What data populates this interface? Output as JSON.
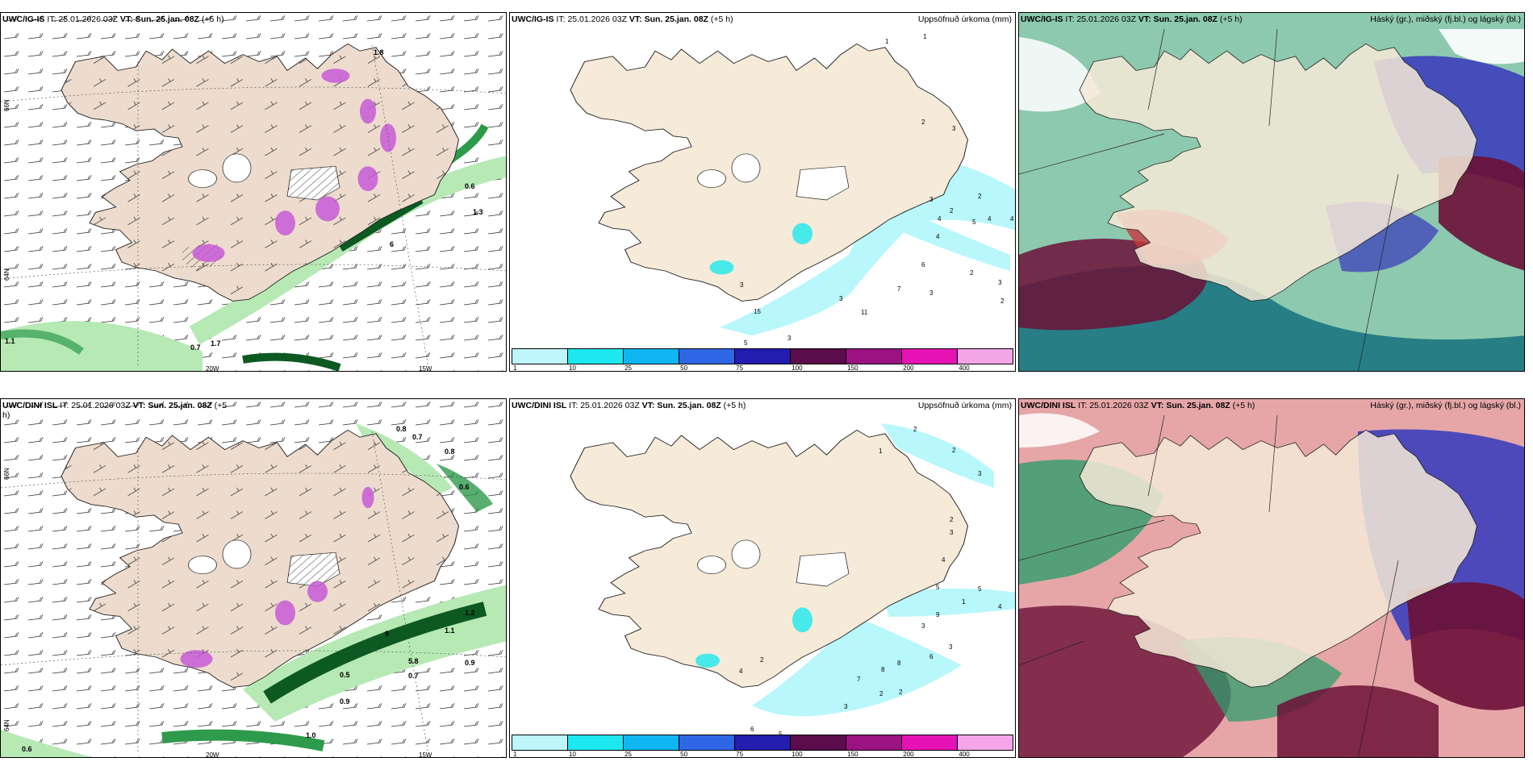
{
  "panels": [
    {
      "model": "UWC/IG-IS",
      "it_label": "IT:",
      "it_value": "25.01.2026 03Z",
      "vt_label": "VT:",
      "vt_value": "Sun. 25.jan. 08Z",
      "lead": "(+5 h)",
      "right_title": "",
      "labels": [
        "1.8",
        "0.6",
        "0.7",
        "1.1",
        "1.3",
        "6",
        "1.7"
      ],
      "lon_ticks": [
        "20W",
        "15W"
      ],
      "lat_ticks": [
        "66N",
        "64N"
      ]
    },
    {
      "model": "UWC/IG-IS",
      "it_label": "IT:",
      "it_value": "25.01.2026 03Z",
      "vt_label": "VT:",
      "vt_value": "Sun. 25.jan. 08Z",
      "lead": "(+5 h)",
      "right_title": "Uppsöfnuð úrkoma (mm)",
      "labels": [
        "1",
        "2",
        "2",
        "3",
        "4",
        "3",
        "2",
        "4",
        "5",
        "4",
        "4",
        "6",
        "7",
        "3",
        "2",
        "3",
        "2",
        "3",
        "11",
        "5",
        "3",
        "3",
        "15",
        "1"
      ]
    },
    {
      "model": "UWC/IG-IS",
      "it_label": "IT:",
      "it_value": "25.01.2026 03Z",
      "vt_label": "VT:",
      "vt_value": "Sun. 25.jan. 08Z",
      "lead": "(+5 h)",
      "right_title": "Háský (gr.), miðský (fj.bl.) og lágský (bl.)"
    },
    {
      "model": "UWC/DINI ISL",
      "it_label": "IT:",
      "it_value": "25.01.2026 03Z",
      "vt_label": "VT:",
      "vt_value": "Sun. 25.jan. 08Z",
      "lead": "(+5",
      "lead2": "h)",
      "right_title": "",
      "labels": [
        "0.8",
        "0.7",
        "0.8",
        "0.6",
        "1.2",
        "1.1",
        "0.7",
        "0.9",
        "0.5",
        "0.9",
        "1.0",
        "0.6",
        "5.8",
        "9"
      ],
      "lon_ticks": [
        "20W",
        "15W"
      ],
      "lat_ticks": [
        "66N",
        "64N"
      ]
    },
    {
      "model": "UWC/DINI ISL",
      "it_label": "IT:",
      "it_value": "25.01.2026 03Z",
      "vt_label": "VT:",
      "vt_value": "Sun. 25.jan. 08Z",
      "lead": "(+5 h)",
      "right_title": "Uppsöfnuð úrkoma (mm)",
      "labels": [
        "2",
        "1",
        "2",
        "3",
        "2",
        "3",
        "4",
        "5",
        "1",
        "4",
        "3",
        "5",
        "9",
        "3",
        "8",
        "6",
        "8",
        "7",
        "2",
        "2",
        "3",
        "5",
        "6",
        "2",
        "4"
      ]
    },
    {
      "model": "UWC/DINI ISL",
      "it_label": "IT:",
      "it_value": "25.01.2026 03Z",
      "vt_label": "VT:",
      "vt_value": "Sun. 25.jan. 08Z",
      "lead": "(+5 h)",
      "right_title": "Háský (gr.), miðský (fj.bl.) og lágský (bl.)"
    }
  ],
  "precip_legend": {
    "ticks": [
      "1",
      "10",
      "25",
      "50",
      "75",
      "100",
      "150",
      "200",
      "400"
    ],
    "colors": [
      "#bff6fb",
      "#1de8ef",
      "#0fb6f2",
      "#2f66e6",
      "#241db0",
      "#5a0d4a",
      "#9b1283",
      "#e513b4",
      "#f4a6e9"
    ]
  },
  "colors": {
    "land": "#f6ead8",
    "land_wind": "#eddccd",
    "precip_light": "#b8f7fb",
    "green_dark": "#0c5a22",
    "green_mid": "#2e9a4b",
    "green_light": "#b7e9b5",
    "magenta": "#c65bd6",
    "cloud_high": "#2f9c6b",
    "cloud_mid": "#3c3fbb",
    "cloud_low": "#c83a3d",
    "cloud_dark": "#6b1036",
    "teal": "#0e6d7a"
  }
}
